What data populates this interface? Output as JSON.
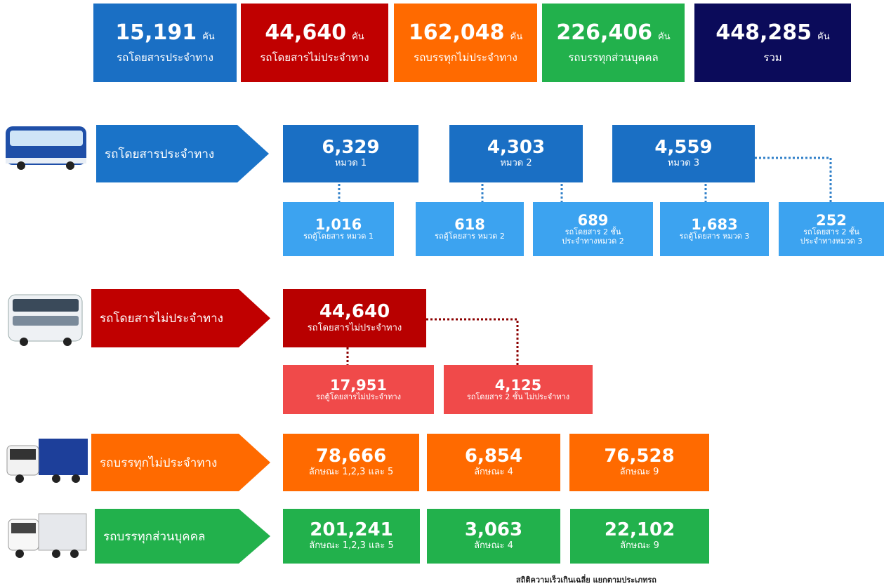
{
  "summary": [
    {
      "value": "15,191",
      "unit": "คัน",
      "label": "รถโดยสารประจำทาง"
    },
    {
      "value": "44,640",
      "unit": "คัน",
      "label": "รถโดยสารไม่ประจำทาง"
    },
    {
      "value": "162,048",
      "unit": "คัน",
      "label": "รถบรรทุกไม่ประจำทาง"
    },
    {
      "value": "226,406",
      "unit": "คัน",
      "label": "รถบรรทุกส่วนบุคคล"
    },
    {
      "value": "448,285",
      "unit": "คัน",
      "label": "รวม"
    }
  ],
  "sections": [
    {
      "name": "รถโดยสารประจำทาง",
      "groups": [
        {
          "value": "6,329",
          "label": "หมวด 1"
        },
        {
          "value": "4,303",
          "label": "หมวด 2"
        },
        {
          "value": "4,559",
          "label": "หมวด 3"
        }
      ],
      "details": [
        {
          "value": "1,016",
          "label": [
            "รถตู้โดยสาร หมวด 1"
          ]
        },
        {
          "value": "618",
          "label": [
            "รถตู้โดยสาร หมวด 2"
          ]
        },
        {
          "value": "689",
          "label": [
            "รถโดยสาร 2 ชั้น",
            "ประจำทางหมวด 2"
          ]
        },
        {
          "value": "1,683",
          "label": [
            "รถตู้โดยสาร หมวด 3"
          ]
        },
        {
          "value": "252",
          "label": [
            "รถโดยสาร 2 ชั้น",
            "ประจำทางหมวด 3"
          ]
        }
      ]
    },
    {
      "name": "รถโดยสารไม่ประจำทาง",
      "groups": [
        {
          "value": "44,640",
          "label": "รถโดยสารไม่ประจำทาง"
        }
      ],
      "details": [
        {
          "value": "17,951",
          "label": [
            "รถตู้โดยสารไม่ประจำทาง"
          ]
        },
        {
          "value": "4,125",
          "label": [
            "รถโดยสาร 2 ชั้น ไม่ประจำทาง"
          ]
        }
      ]
    },
    {
      "name": "รถบรรทุกไม่ประจำทาง",
      "groups": [
        {
          "value": "78,666",
          "label": "ลักษณะ 1,2,3 และ 5"
        },
        {
          "value": "6,854",
          "label": "ลักษณะ 4"
        },
        {
          "value": "76,528",
          "label": "ลักษณะ 9"
        }
      ],
      "details": []
    },
    {
      "name": "รถบรรทุกส่วนบุคคล",
      "groups": [
        {
          "value": "201,241",
          "label": "ลักษณะ 1,2,3 และ 5"
        },
        {
          "value": "3,063",
          "label": "ลักษณะ 4"
        },
        {
          "value": "22,102",
          "label": "ลักษณะ 9"
        }
      ],
      "details": []
    }
  ],
  "footer": "สถิติความเร็วเกินเฉลี่ย แยกตามประเภทรถ"
}
